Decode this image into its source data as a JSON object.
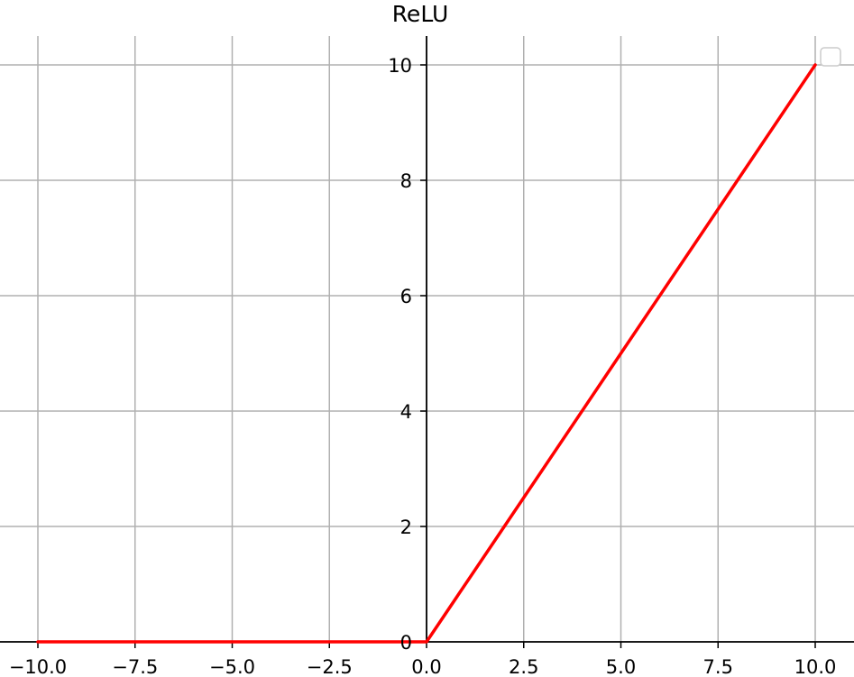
{
  "chart_data": {
    "type": "line",
    "title": "ReLU",
    "xlabel": "",
    "ylabel": "",
    "xlim": [
      -10.5,
      10.5
    ],
    "ylim": [
      0,
      10.5
    ],
    "x_ticks": [
      -10.0,
      -7.5,
      -5.0,
      -2.5,
      0.0,
      2.5,
      5.0,
      7.5,
      10.0
    ],
    "x_tick_labels": [
      "−10.0",
      "−7.5",
      "−5.0",
      "−2.5",
      "0.0",
      "2.5",
      "5.0",
      "7.5",
      "10.0"
    ],
    "y_ticks": [
      0,
      2,
      4,
      6,
      8,
      10
    ],
    "y_tick_labels": [
      "0",
      "2",
      "4",
      "6",
      "8",
      "10"
    ],
    "grid": true,
    "spines": "centered",
    "legend": "top-right",
    "series": [
      {
        "color": "#ff0000",
        "x": [
          -10,
          -7.5,
          -5,
          -2.5,
          0,
          2.5,
          5,
          7.5,
          10
        ],
        "y": [
          0,
          0,
          0,
          0,
          0,
          2.5,
          5,
          7.5,
          10
        ]
      }
    ],
    "colors": {
      "grid": "#b0b0b0",
      "axis": "#000000",
      "legend_border": "#cccccc"
    }
  }
}
